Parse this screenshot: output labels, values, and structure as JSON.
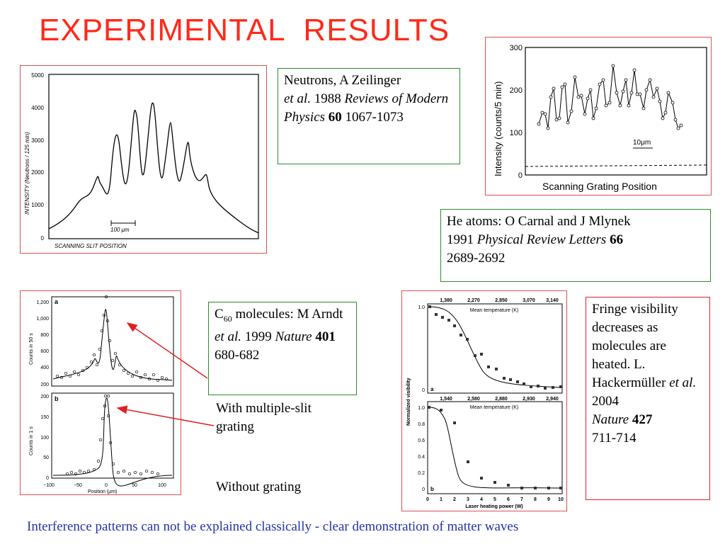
{
  "title": "EXPERIMENTAL  RESULTS",
  "neutron_ref": {
    "text1": "Neutrons, A Zeilinger",
    "etal": "et al.",
    "year": "1988",
    "journal": "Reviews of Modern Physics",
    "vol": "60",
    "pages": "1067-1073"
  },
  "he_ref": {
    "text1": "He atoms: O Carnal and J Mlynek",
    "year": "1991",
    "journal": "Physical Review Letters",
    "vol": "66",
    "pages": "2689-2692"
  },
  "c60_ref": {
    "prefix": "C",
    "sub": "60",
    "text1": "molecules: M Arndt",
    "etal": "et al.",
    "year": "1999",
    "journal": "Nature",
    "vol": "401",
    "pages": "680-682"
  },
  "with_grating": "With multiple-slit grating",
  "without_grating": "Without grating",
  "fringe_ref": {
    "text1": "Fringe visibility decreases as molecules are heated. L. Hackermüller",
    "etal": "et al.",
    "year": "2004",
    "journal": "Nature",
    "vol": "427",
    "pages": "711-714"
  },
  "footer": "Interference patterns can not be explained classically - clear demonstration of matter waves",
  "neutron_plot": {
    "ylabel": "INTENSITY  (Neutrons / 125 min)",
    "xlabel": "SCANNING SLIT POSITION",
    "scale": "100 μm",
    "yticks": [
      "5000",
      "4000",
      "3000",
      "2000",
      "1000",
      "0"
    ]
  },
  "he_plot": {
    "ylabel": "Intensity (counts/5 min)",
    "xlabel": "Scanning Grating Position",
    "scale": "10μm",
    "yticks": [
      "300",
      "200",
      "100",
      "0"
    ]
  },
  "c60_plot": {
    "label_a": "a",
    "label_b": "b",
    "ylabel_a": "Counts in 50 s",
    "ylabel_b": "Counts in 1 s",
    "xlabel": "Position (μm)",
    "yticks_a": [
      "1,200",
      "1,000",
      "800",
      "600",
      "400",
      "200"
    ],
    "yticks_b": [
      "200",
      "150",
      "100",
      "50",
      "0"
    ],
    "xticks": [
      "−100",
      "−50",
      "0",
      "50",
      "100"
    ]
  },
  "vis_plot": {
    "ylabel": "Normalized visibility",
    "top_axis_label": "Mean temperature (K)",
    "top_ticks": [
      "1,380",
      "2,270",
      "2,850",
      "3,070",
      "3,140"
    ],
    "mid_axis_label": "Mean temperature (K)",
    "mid_ticks": [
      "1,540",
      "2,580",
      "2,880",
      "2,930",
      "2,940"
    ],
    "xlabel": "Laser heating power (W)",
    "xticks": [
      "0",
      "1",
      "2",
      "3",
      "4",
      "5",
      "6",
      "7",
      "8",
      "9",
      "10"
    ],
    "label_a": "a",
    "label_b": "b",
    "yticks": [
      "1.0",
      "0.8",
      "0.6",
      "0.4",
      "0.2",
      "0"
    ]
  },
  "colors": {
    "title": "#ff2a1a",
    "footer": "#2233aa",
    "green_border": "#2e8b2e",
    "red_border": "#e0202a",
    "arrow": "#e02020"
  }
}
